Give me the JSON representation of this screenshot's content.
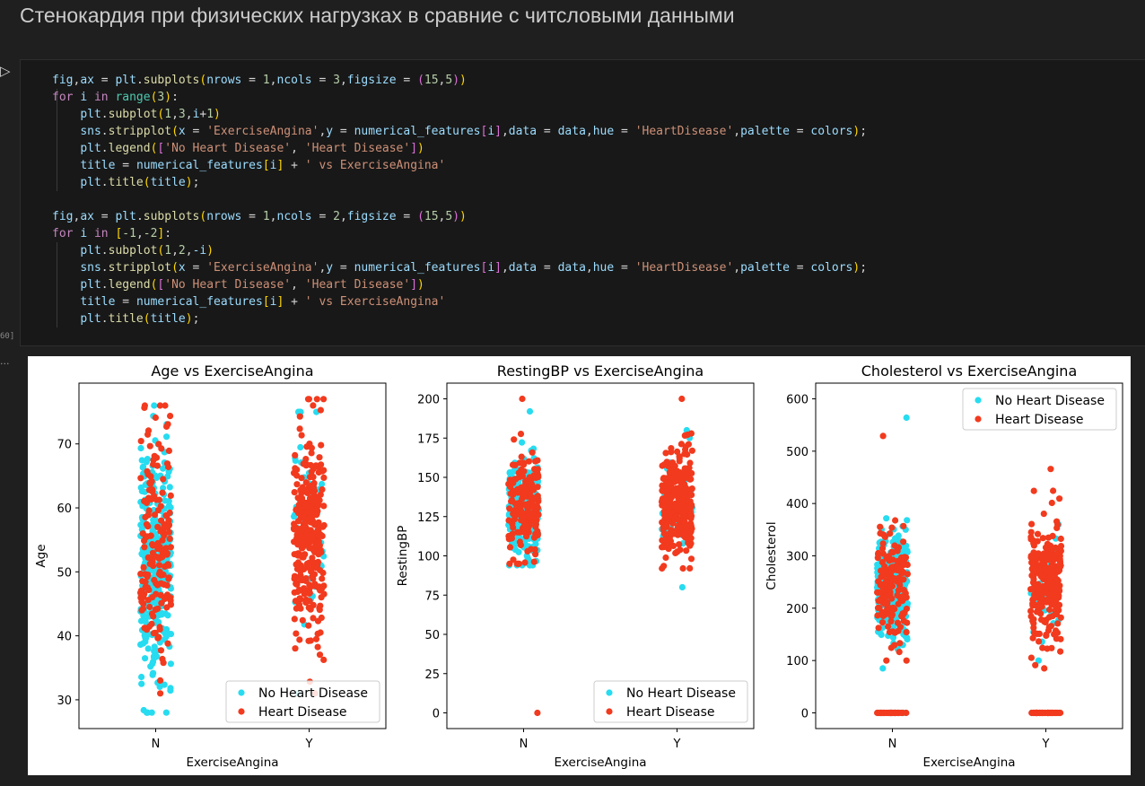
{
  "heading": "Стенокардия при физических нагрузках в сравние с читсловыми данными",
  "cell": {
    "execution_count": "60]",
    "output_marker": "...",
    "code_lines": [
      [
        [
          "fig",
          "var"
        ],
        [
          ",",
          "op"
        ],
        [
          "ax",
          "var"
        ],
        [
          " = ",
          "op"
        ],
        [
          "plt",
          "var"
        ],
        [
          ".",
          "op"
        ],
        [
          "subplots",
          "fn"
        ],
        [
          "(",
          "p1"
        ],
        [
          "nrows",
          "var"
        ],
        [
          " = ",
          "op"
        ],
        [
          "1",
          "num"
        ],
        [
          ",",
          "op"
        ],
        [
          "ncols",
          "var"
        ],
        [
          " = ",
          "op"
        ],
        [
          "3",
          "num"
        ],
        [
          ",",
          "op"
        ],
        [
          "figsize",
          "var"
        ],
        [
          " = ",
          "op"
        ],
        [
          "(",
          "p2"
        ],
        [
          "15",
          "num"
        ],
        [
          ",",
          "op"
        ],
        [
          "5",
          "num"
        ],
        [
          ")",
          "p2"
        ],
        [
          ")",
          "p1"
        ]
      ],
      [
        [
          "for",
          "kw"
        ],
        [
          " ",
          "op"
        ],
        [
          "i",
          "var"
        ],
        [
          " in ",
          "kw"
        ],
        [
          "range",
          "bi"
        ],
        [
          "(",
          "p1"
        ],
        [
          "3",
          "num"
        ],
        [
          ")",
          "p1"
        ],
        [
          ":",
          "op"
        ]
      ],
      [
        [
          "    ",
          "op"
        ],
        [
          "plt",
          "var"
        ],
        [
          ".",
          "op"
        ],
        [
          "subplot",
          "fn"
        ],
        [
          "(",
          "p1"
        ],
        [
          "1",
          "num"
        ],
        [
          ",",
          "op"
        ],
        [
          "3",
          "num"
        ],
        [
          ",",
          "op"
        ],
        [
          "i",
          "var"
        ],
        [
          "+",
          "op"
        ],
        [
          "1",
          "num"
        ],
        [
          ")",
          "p1"
        ]
      ],
      [
        [
          "    ",
          "op"
        ],
        [
          "sns",
          "var"
        ],
        [
          ".",
          "op"
        ],
        [
          "stripplot",
          "fn"
        ],
        [
          "(",
          "p1"
        ],
        [
          "x",
          "var"
        ],
        [
          " = ",
          "op"
        ],
        [
          "'ExerciseAngina'",
          "str"
        ],
        [
          ",",
          "op"
        ],
        [
          "y",
          "var"
        ],
        [
          " = ",
          "op"
        ],
        [
          "numerical_features",
          "var"
        ],
        [
          "[",
          "p2"
        ],
        [
          "i",
          "var"
        ],
        [
          "]",
          "p2"
        ],
        [
          ",",
          "op"
        ],
        [
          "data",
          "var"
        ],
        [
          " = ",
          "op"
        ],
        [
          "data",
          "var"
        ],
        [
          ",",
          "op"
        ],
        [
          "hue",
          "var"
        ],
        [
          " = ",
          "op"
        ],
        [
          "'HeartDisease'",
          "str"
        ],
        [
          ",",
          "op"
        ],
        [
          "palette",
          "var"
        ],
        [
          " = ",
          "op"
        ],
        [
          "colors",
          "var"
        ],
        [
          ")",
          "p1"
        ],
        [
          ";",
          "op"
        ]
      ],
      [
        [
          "    ",
          "op"
        ],
        [
          "plt",
          "var"
        ],
        [
          ".",
          "op"
        ],
        [
          "legend",
          "fn"
        ],
        [
          "(",
          "p1"
        ],
        [
          "[",
          "p2"
        ],
        [
          "'No Heart Disease'",
          "str"
        ],
        [
          ", ",
          "op"
        ],
        [
          "'Heart Disease'",
          "str"
        ],
        [
          "]",
          "p2"
        ],
        [
          ")",
          "p1"
        ]
      ],
      [
        [
          "    ",
          "op"
        ],
        [
          "title",
          "var"
        ],
        [
          " = ",
          "op"
        ],
        [
          "numerical_features",
          "var"
        ],
        [
          "[",
          "p1"
        ],
        [
          "i",
          "var"
        ],
        [
          "]",
          "p1"
        ],
        [
          " + ",
          "op"
        ],
        [
          "' vs ExerciseAngina'",
          "str"
        ]
      ],
      [
        [
          "    ",
          "op"
        ],
        [
          "plt",
          "var"
        ],
        [
          ".",
          "op"
        ],
        [
          "title",
          "fn"
        ],
        [
          "(",
          "p1"
        ],
        [
          "title",
          "var"
        ],
        [
          ")",
          "p1"
        ],
        [
          ";",
          "op"
        ]
      ],
      [],
      [
        [
          "fig",
          "var"
        ],
        [
          ",",
          "op"
        ],
        [
          "ax",
          "var"
        ],
        [
          " = ",
          "op"
        ],
        [
          "plt",
          "var"
        ],
        [
          ".",
          "op"
        ],
        [
          "subplots",
          "fn"
        ],
        [
          "(",
          "p1"
        ],
        [
          "nrows",
          "var"
        ],
        [
          " = ",
          "op"
        ],
        [
          "1",
          "num"
        ],
        [
          ",",
          "op"
        ],
        [
          "ncols",
          "var"
        ],
        [
          " = ",
          "op"
        ],
        [
          "2",
          "num"
        ],
        [
          ",",
          "op"
        ],
        [
          "figsize",
          "var"
        ],
        [
          " = ",
          "op"
        ],
        [
          "(",
          "p2"
        ],
        [
          "15",
          "num"
        ],
        [
          ",",
          "op"
        ],
        [
          "5",
          "num"
        ],
        [
          ")",
          "p2"
        ],
        [
          ")",
          "p1"
        ]
      ],
      [
        [
          "for",
          "kw"
        ],
        [
          " ",
          "op"
        ],
        [
          "i",
          "var"
        ],
        [
          " in ",
          "kw"
        ],
        [
          "[",
          "p1"
        ],
        [
          "-1",
          "num"
        ],
        [
          ",",
          "op"
        ],
        [
          "-2",
          "num"
        ],
        [
          "]",
          "p1"
        ],
        [
          ":",
          "op"
        ]
      ],
      [
        [
          "    ",
          "op"
        ],
        [
          "plt",
          "var"
        ],
        [
          ".",
          "op"
        ],
        [
          "subplot",
          "fn"
        ],
        [
          "(",
          "p1"
        ],
        [
          "1",
          "num"
        ],
        [
          ",",
          "op"
        ],
        [
          "2",
          "num"
        ],
        [
          ",",
          "op"
        ],
        [
          "-i",
          "var"
        ],
        [
          ")",
          "p1"
        ]
      ],
      [
        [
          "    ",
          "op"
        ],
        [
          "sns",
          "var"
        ],
        [
          ".",
          "op"
        ],
        [
          "stripplot",
          "fn"
        ],
        [
          "(",
          "p1"
        ],
        [
          "x",
          "var"
        ],
        [
          " = ",
          "op"
        ],
        [
          "'ExerciseAngina'",
          "str"
        ],
        [
          ",",
          "op"
        ],
        [
          "y",
          "var"
        ],
        [
          " = ",
          "op"
        ],
        [
          "numerical_features",
          "var"
        ],
        [
          "[",
          "p2"
        ],
        [
          "i",
          "var"
        ],
        [
          "]",
          "p2"
        ],
        [
          ",",
          "op"
        ],
        [
          "data",
          "var"
        ],
        [
          " = ",
          "op"
        ],
        [
          "data",
          "var"
        ],
        [
          ",",
          "op"
        ],
        [
          "hue",
          "var"
        ],
        [
          " = ",
          "op"
        ],
        [
          "'HeartDisease'",
          "str"
        ],
        [
          ",",
          "op"
        ],
        [
          "palette",
          "var"
        ],
        [
          " = ",
          "op"
        ],
        [
          "colors",
          "var"
        ],
        [
          ")",
          "p1"
        ],
        [
          ";",
          "op"
        ]
      ],
      [
        [
          "    ",
          "op"
        ],
        [
          "plt",
          "var"
        ],
        [
          ".",
          "op"
        ],
        [
          "legend",
          "fn"
        ],
        [
          "(",
          "p1"
        ],
        [
          "[",
          "p2"
        ],
        [
          "'No Heart Disease'",
          "str"
        ],
        [
          ", ",
          "op"
        ],
        [
          "'Heart Disease'",
          "str"
        ],
        [
          "]",
          "p2"
        ],
        [
          ")",
          "p1"
        ]
      ],
      [
        [
          "    ",
          "op"
        ],
        [
          "title",
          "var"
        ],
        [
          " = ",
          "op"
        ],
        [
          "numerical_features",
          "var"
        ],
        [
          "[",
          "p1"
        ],
        [
          "i",
          "var"
        ],
        [
          "]",
          "p1"
        ],
        [
          " + ",
          "op"
        ],
        [
          "' vs ExerciseAngina'",
          "str"
        ]
      ],
      [
        [
          "    ",
          "op"
        ],
        [
          "plt",
          "var"
        ],
        [
          ".",
          "op"
        ],
        [
          "title",
          "fn"
        ],
        [
          "(",
          "p1"
        ],
        [
          "title",
          "var"
        ],
        [
          ")",
          "p1"
        ],
        [
          ";",
          "op"
        ]
      ]
    ]
  },
  "colors": {
    "no_disease": "#27dcf0",
    "disease": "#f23a1e"
  },
  "chart_data": [
    {
      "type": "scatter",
      "title": "Age vs ExerciseAngina",
      "xlabel": "ExerciseAngina",
      "ylabel": "Age",
      "categories": [
        "N",
        "Y"
      ],
      "yticks": [
        30,
        40,
        50,
        60,
        70
      ],
      "ylim": [
        25.5,
        79.5
      ],
      "legend": [
        "No Heart Disease",
        "Heart Disease"
      ],
      "legend_loc": "lower right",
      "series": [
        {
          "name": "No Heart Disease",
          "category": "N",
          "min": 28,
          "max": 76,
          "center": 51,
          "spread": 9,
          "count": 330
        },
        {
          "name": "Heart Disease",
          "category": "N",
          "min": 31,
          "max": 76,
          "center": 55,
          "spread": 9,
          "count": 170
        },
        {
          "name": "No Heart Disease",
          "category": "Y",
          "min": 31,
          "max": 75,
          "center": 56,
          "spread": 9,
          "count": 40
        },
        {
          "name": "Heart Disease",
          "category": "Y",
          "min": 31,
          "max": 77,
          "center": 56,
          "spread": 8,
          "count": 320
        }
      ]
    },
    {
      "type": "scatter",
      "title": "RestingBP vs ExerciseAngina",
      "xlabel": "ExerciseAngina",
      "ylabel": "RestingBP",
      "categories": [
        "N",
        "Y"
      ],
      "yticks": [
        0,
        25,
        50,
        75,
        100,
        125,
        150,
        175,
        200
      ],
      "ylim": [
        -10,
        210
      ],
      "legend": [
        "No Heart Disease",
        "Heart Disease"
      ],
      "legend_loc": "lower right",
      "series": [
        {
          "name": "No Heart Disease",
          "category": "N",
          "min": 94,
          "max": 192,
          "center": 130,
          "spread": 15,
          "count": 330
        },
        {
          "name": "Heart Disease",
          "category": "N",
          "min": 95,
          "max": 200,
          "center": 132,
          "spread": 17,
          "count": 170,
          "extra": [
            0
          ]
        },
        {
          "name": "No Heart Disease",
          "category": "Y",
          "min": 80,
          "max": 180,
          "center": 130,
          "spread": 16,
          "count": 40
        },
        {
          "name": "Heart Disease",
          "category": "Y",
          "min": 92,
          "max": 200,
          "center": 135,
          "spread": 17,
          "count": 320
        }
      ]
    },
    {
      "type": "scatter",
      "title": "Cholesterol vs ExerciseAngina",
      "xlabel": "ExerciseAngina",
      "ylabel": "Cholesterol",
      "categories": [
        "N",
        "Y"
      ],
      "yticks": [
        0,
        100,
        200,
        300,
        400,
        500,
        600
      ],
      "ylim": [
        -30,
        630
      ],
      "legend": [
        "No Heart Disease",
        "Heart Disease"
      ],
      "legend_loc": "upper right",
      "series": [
        {
          "name": "No Heart Disease",
          "category": "N",
          "min": 85,
          "max": 564,
          "center": 240,
          "spread": 50,
          "count": 330,
          "zeros": 22
        },
        {
          "name": "Heart Disease",
          "category": "N",
          "min": 100,
          "max": 529,
          "center": 245,
          "spread": 55,
          "count": 160,
          "zeros": 28
        },
        {
          "name": "No Heart Disease",
          "category": "Y",
          "min": 100,
          "max": 360,
          "center": 235,
          "spread": 45,
          "count": 35,
          "zeros": 4
        },
        {
          "name": "Heart Disease",
          "category": "Y",
          "min": 85,
          "max": 466,
          "center": 245,
          "spread": 55,
          "count": 270,
          "zeros": 45
        }
      ]
    }
  ]
}
